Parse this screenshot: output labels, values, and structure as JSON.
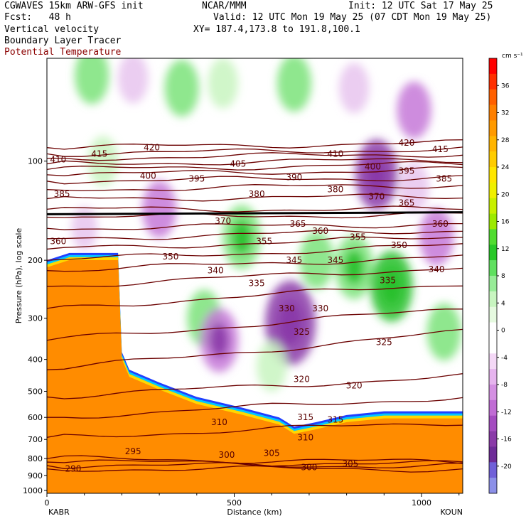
{
  "header": {
    "model": "CGWAVES 15km ARW-GFS init",
    "fcst": "Fcst:   48 h",
    "field1": "Vertical velocity",
    "field2": "Boundary Layer Tracer",
    "field3": "Potential Temperature",
    "center": "NCAR/MMM",
    "init": "Init: 12 UTC Sat 17 May 25",
    "valid": "Valid: 12 UTC Mon 19 May 25 (07 CDT Mon 19 May 25)",
    "xy": "XY= 187.4,173.8 to 191.8,100.1"
  },
  "colors": {
    "theta": "#6b0000",
    "tracer_orange": "#ff8c00",
    "tracer_yellow": "#ffd700",
    "tracer_cyan": "#00c8ff",
    "tracer_blue": "#2040ff",
    "up_light": "#c8f5c0",
    "up_green": "#7be37a",
    "up_dark": "#27c02a",
    "down_light": "#e8c4ee",
    "down_mid": "#c678d8",
    "down_dark": "#8a3aa8"
  },
  "chart_data": {
    "type": "heatmap",
    "title": "Vertical velocity / Boundary Layer Tracer / Potential Temperature cross section",
    "xlabel": "Distance (km)",
    "ylabel": "Pressure (hPa), log scale",
    "x_ticks": [
      0,
      500,
      1000
    ],
    "y_ticks": [
      100,
      200,
      300,
      400,
      500,
      600,
      700,
      800,
      900,
      1000
    ],
    "xlim": [
      0,
      1110
    ],
    "ylim": [
      1000,
      50
    ],
    "left_endpoint": "KABR",
    "right_endpoint": "KOUN",
    "colorbar": {
      "units": "cm s⁻¹",
      "ticks": [
        36,
        32,
        28,
        24,
        20,
        16,
        12,
        8,
        4,
        0,
        -4,
        -8,
        -12,
        -16,
        -20
      ],
      "colors": [
        "#ff0000",
        "#ff3000",
        "#ff6000",
        "#ff8000",
        "#ff9a00",
        "#ffb400",
        "#ffcc00",
        "#ffe600",
        "#f0f000",
        "#c8f000",
        "#9cea00",
        "#50dc30",
        "#28c828",
        "#60e060",
        "#98ec98",
        "#c8f5c0",
        "#e6fae0",
        "#ffffff",
        "#ffffff",
        "#f4d8f6",
        "#e6b4ee",
        "#d490e2",
        "#c06cd4",
        "#a44cc0",
        "#8a3aa8",
        "#6e2c98",
        "#7060d8",
        "#8c90e8"
      ]
    },
    "theta_contours": [
      {
        "level": 290,
        "p": [
          860,
          860
        ]
      },
      {
        "level": 295,
        "p": [
          840,
          840
        ]
      },
      {
        "level": 300,
        "p": [
          820,
          830
        ]
      },
      {
        "level": 305,
        "p": [
          800,
          820
        ]
      },
      {
        "level": 310,
        "p": [
          690,
          620
        ]
      },
      {
        "level": 315,
        "p": [
          600,
          520
        ]
      },
      {
        "level": 320,
        "p": [
          520,
          450
        ]
      },
      {
        "level": 325,
        "p": [
          430,
          330
        ]
      },
      {
        "level": 330,
        "p": [
          350,
          280
        ]
      },
      {
        "level": 335,
        "p": [
          280,
          235
        ]
      },
      {
        "level": 340,
        "p": [
          240,
          210
        ]
      },
      {
        "level": 345,
        "p": [
          215,
          195
        ]
      },
      {
        "level": 350,
        "p": [
          200,
          180
        ]
      },
      {
        "level": 355,
        "p": [
          185,
          170
        ]
      },
      {
        "level": 360,
        "p": [
          172,
          162
        ]
      },
      {
        "level": 365,
        "p": [
          160,
          155
        ]
      },
      {
        "level": 370,
        "p": [
          148,
          145
        ]
      },
      {
        "level": 375,
        "p": [
          140,
          140
        ]
      },
      {
        "level": 380,
        "p": [
          130,
          128
        ]
      },
      {
        "level": 385,
        "p": [
          122,
          118
        ]
      },
      {
        "level": 390,
        "p": [
          115,
          112
        ]
      },
      {
        "level": 395,
        "p": [
          110,
          106
        ]
      },
      {
        "level": 400,
        "p": [
          106,
          102
        ]
      },
      {
        "level": 405,
        "p": [
          102,
          99
        ]
      },
      {
        "level": 410,
        "p": [
          98,
          95
        ]
      },
      {
        "level": 415,
        "p": [
          95,
          92
        ]
      },
      {
        "level": 420,
        "p": [
          91,
          88
        ]
      }
    ],
    "theta_label_positions": [
      {
        "text": "420",
        "x": 280,
        "p": 91
      },
      {
        "text": "420",
        "x": 960,
        "p": 88
      },
      {
        "text": "415",
        "x": 140,
        "p": 95
      },
      {
        "text": "415",
        "x": 1050,
        "p": 92
      },
      {
        "text": "410",
        "x": 30,
        "p": 99
      },
      {
        "text": "410",
        "x": 770,
        "p": 95
      },
      {
        "text": "405",
        "x": 510,
        "p": 102
      },
      {
        "text": "400",
        "x": 270,
        "p": 111
      },
      {
        "text": "400",
        "x": 870,
        "p": 104
      },
      {
        "text": "395",
        "x": 400,
        "p": 113
      },
      {
        "text": "395",
        "x": 960,
        "p": 107
      },
      {
        "text": "390",
        "x": 660,
        "p": 112
      },
      {
        "text": "385",
        "x": 40,
        "p": 126
      },
      {
        "text": "385",
        "x": 1060,
        "p": 113
      },
      {
        "text": "380",
        "x": 560,
        "p": 126
      },
      {
        "text": "380",
        "x": 770,
        "p": 122
      },
      {
        "text": "370",
        "x": 470,
        "p": 152
      },
      {
        "text": "370",
        "x": 880,
        "p": 128
      },
      {
        "text": "365",
        "x": 670,
        "p": 155
      },
      {
        "text": "365",
        "x": 960,
        "p": 134
      },
      {
        "text": "360",
        "x": 30,
        "p": 175
      },
      {
        "text": "360",
        "x": 730,
        "p": 163
      },
      {
        "text": "360",
        "x": 1050,
        "p": 155
      },
      {
        "text": "355",
        "x": 580,
        "p": 175
      },
      {
        "text": "355",
        "x": 830,
        "p": 170
      },
      {
        "text": "350",
        "x": 330,
        "p": 195
      },
      {
        "text": "350",
        "x": 940,
        "p": 180
      },
      {
        "text": "345",
        "x": 660,
        "p": 200
      },
      {
        "text": "345",
        "x": 770,
        "p": 200
      },
      {
        "text": "340",
        "x": 450,
        "p": 215
      },
      {
        "text": "340",
        "x": 1040,
        "p": 213
      },
      {
        "text": "335",
        "x": 560,
        "p": 235
      },
      {
        "text": "335",
        "x": 910,
        "p": 230
      },
      {
        "text": "330",
        "x": 640,
        "p": 280
      },
      {
        "text": "330",
        "x": 730,
        "p": 280
      },
      {
        "text": "325",
        "x": 680,
        "p": 330
      },
      {
        "text": "325",
        "x": 900,
        "p": 355
      },
      {
        "text": "320",
        "x": 680,
        "p": 460
      },
      {
        "text": "320",
        "x": 820,
        "p": 480
      },
      {
        "text": "315",
        "x": 690,
        "p": 600
      },
      {
        "text": "315",
        "x": 770,
        "p": 610
      },
      {
        "text": "310",
        "x": 460,
        "p": 620
      },
      {
        "text": "310",
        "x": 690,
        "p": 690
      },
      {
        "text": "305",
        "x": 600,
        "p": 770
      },
      {
        "text": "305",
        "x": 810,
        "p": 830
      },
      {
        "text": "300",
        "x": 480,
        "p": 780
      },
      {
        "text": "300",
        "x": 700,
        "p": 850
      },
      {
        "text": "295",
        "x": 230,
        "p": 760
      },
      {
        "text": "290",
        "x": 70,
        "p": 860
      }
    ],
    "tracer_top": [
      {
        "x": 0,
        "p": 200
      },
      {
        "x": 60,
        "p": 190
      },
      {
        "x": 190,
        "p": 190
      },
      {
        "x": 200,
        "p": 380
      },
      {
        "x": 220,
        "p": 430
      },
      {
        "x": 300,
        "p": 470
      },
      {
        "x": 400,
        "p": 520
      },
      {
        "x": 520,
        "p": 560
      },
      {
        "x": 620,
        "p": 600
      },
      {
        "x": 660,
        "p": 640
      },
      {
        "x": 720,
        "p": 620
      },
      {
        "x": 800,
        "p": 590
      },
      {
        "x": 900,
        "p": 575
      },
      {
        "x": 1000,
        "p": 575
      },
      {
        "x": 1110,
        "p": 575
      }
    ],
    "vv_cells": [
      {
        "x": 120,
        "p": 55,
        "v": 8
      },
      {
        "x": 230,
        "p": 56,
        "v": -6
      },
      {
        "x": 360,
        "p": 60,
        "v": 8
      },
      {
        "x": 470,
        "p": 58,
        "v": 6
      },
      {
        "x": 660,
        "p": 58,
        "v": 8
      },
      {
        "x": 820,
        "p": 60,
        "v": -6
      },
      {
        "x": 980,
        "p": 70,
        "v": -8
      },
      {
        "x": 150,
        "p": 100,
        "v": 6
      },
      {
        "x": 300,
        "p": 140,
        "v": -8
      },
      {
        "x": 420,
        "p": 300,
        "v": 8
      },
      {
        "x": 460,
        "p": 350,
        "v": -10
      },
      {
        "x": 520,
        "p": 170,
        "v": 10
      },
      {
        "x": 650,
        "p": 310,
        "v": -16
      },
      {
        "x": 720,
        "p": 200,
        "v": 8
      },
      {
        "x": 820,
        "p": 210,
        "v": 10
      },
      {
        "x": 920,
        "p": 240,
        "v": 12
      },
      {
        "x": 1060,
        "p": 330,
        "v": 8
      },
      {
        "x": 1040,
        "p": 170,
        "v": -8
      },
      {
        "x": 880,
        "p": 110,
        "v": -12
      },
      {
        "x": 600,
        "p": 420,
        "v": 6
      },
      {
        "x": 100,
        "p": 160,
        "v": -4
      },
      {
        "x": 980,
        "p": 120,
        "v": -6
      }
    ]
  }
}
